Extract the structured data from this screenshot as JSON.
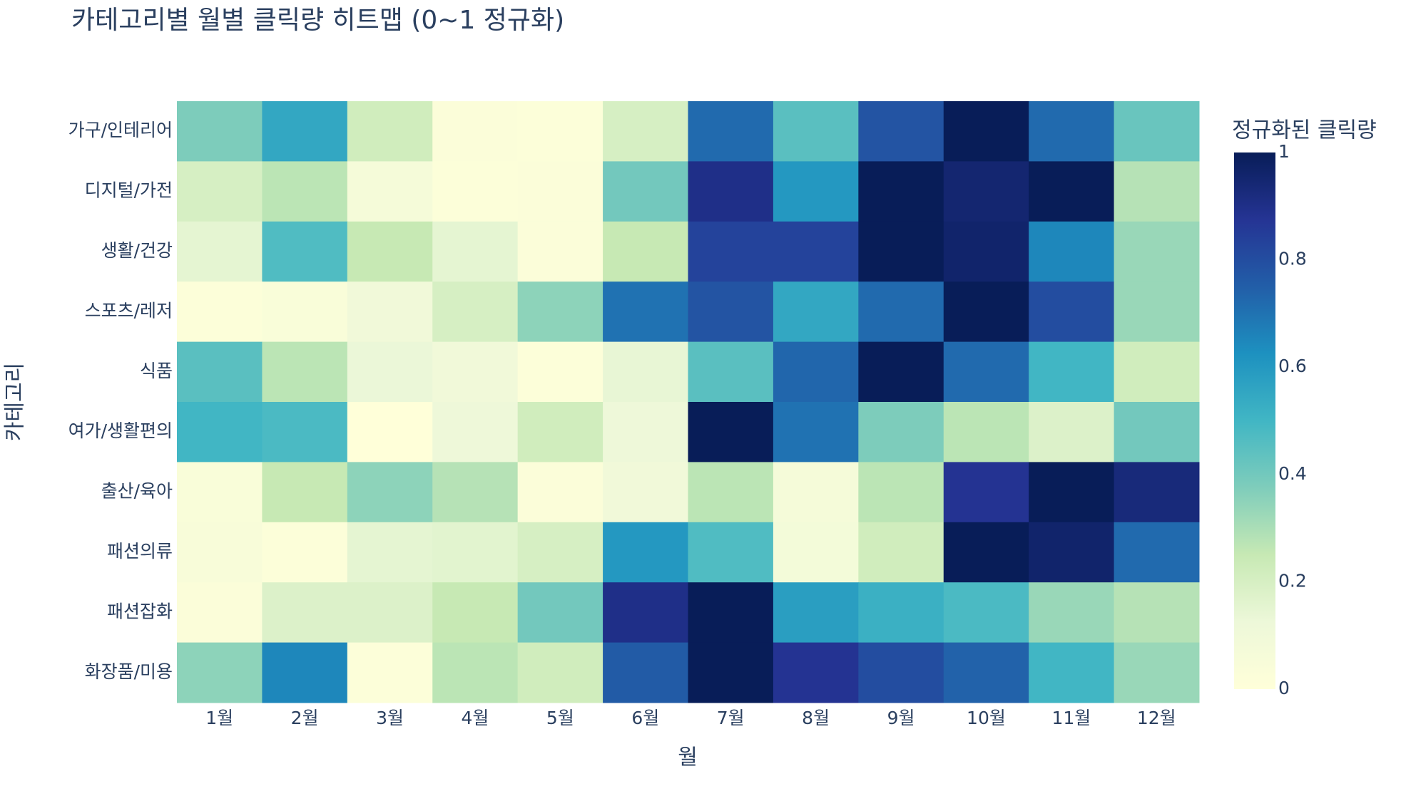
{
  "chart_data": {
    "type": "heatmap",
    "title": "카테고리별 월별 클릭량 히트맵 (0~1 정규화)",
    "x_label": "월",
    "y_label": "카테고리",
    "colorbar_title": "정규화된 클릭량",
    "x": [
      "1월",
      "2월",
      "3월",
      "4월",
      "5월",
      "6월",
      "7월",
      "8월",
      "9월",
      "10월",
      "11월",
      "12월"
    ],
    "y": [
      "가구/인테리어",
      "디지털/가전",
      "생활/건강",
      "스포츠/레저",
      "식품",
      "여가/생활편의",
      "출산/육아",
      "패션의류",
      "패션잡화",
      "화장품/미용"
    ],
    "z": [
      [
        0.38,
        0.55,
        0.22,
        0.03,
        0.02,
        0.2,
        0.72,
        0.45,
        0.78,
        1,
        0.72,
        0.42
      ],
      [
        0.2,
        0.27,
        0.07,
        0.02,
        0.03,
        0.4,
        0.9,
        0.6,
        1,
        0.95,
        1,
        0.28
      ],
      [
        0.15,
        0.47,
        0.25,
        0.15,
        0.03,
        0.25,
        0.83,
        0.83,
        1,
        0.96,
        0.65,
        0.33
      ],
      [
        0.02,
        0.04,
        0.1,
        0.2,
        0.35,
        0.7,
        0.78,
        0.55,
        0.72,
        1,
        0.8,
        0.33
      ],
      [
        0.45,
        0.27,
        0.13,
        0.1,
        0.02,
        0.14,
        0.45,
        0.73,
        1,
        0.72,
        0.5,
        0.22
      ],
      [
        0.5,
        0.48,
        0,
        0.12,
        0.22,
        0.12,
        1,
        0.7,
        0.38,
        0.27,
        0.18,
        0.4
      ],
      [
        0.04,
        0.25,
        0.35,
        0.28,
        0.03,
        0.1,
        0.27,
        0.07,
        0.27,
        0.88,
        1,
        0.93
      ],
      [
        0.05,
        0.02,
        0.15,
        0.16,
        0.2,
        0.6,
        0.47,
        0.08,
        0.22,
        1,
        0.96,
        0.72
      ],
      [
        0.03,
        0.18,
        0.18,
        0.25,
        0.4,
        0.9,
        1,
        0.58,
        0.52,
        0.48,
        0.33,
        0.28
      ],
      [
        0.35,
        0.65,
        0.02,
        0.27,
        0.22,
        0.76,
        1,
        0.88,
        0.8,
        0.74,
        0.5,
        0.33
      ]
    ],
    "zlim": [
      0,
      1
    ],
    "zticks": [
      0,
      0.2,
      0.4,
      0.6,
      0.8,
      1
    ],
    "colorscale": [
      [
        0,
        "#ffffd9"
      ],
      [
        0.125,
        "#edf8d9"
      ],
      [
        0.25,
        "#c7e9b4"
      ],
      [
        0.375,
        "#7fcdbb"
      ],
      [
        0.5,
        "#41b6c4"
      ],
      [
        0.625,
        "#1d91c0"
      ],
      [
        0.75,
        "#225ea8"
      ],
      [
        0.875,
        "#253494"
      ],
      [
        1,
        "#081d58"
      ]
    ]
  }
}
